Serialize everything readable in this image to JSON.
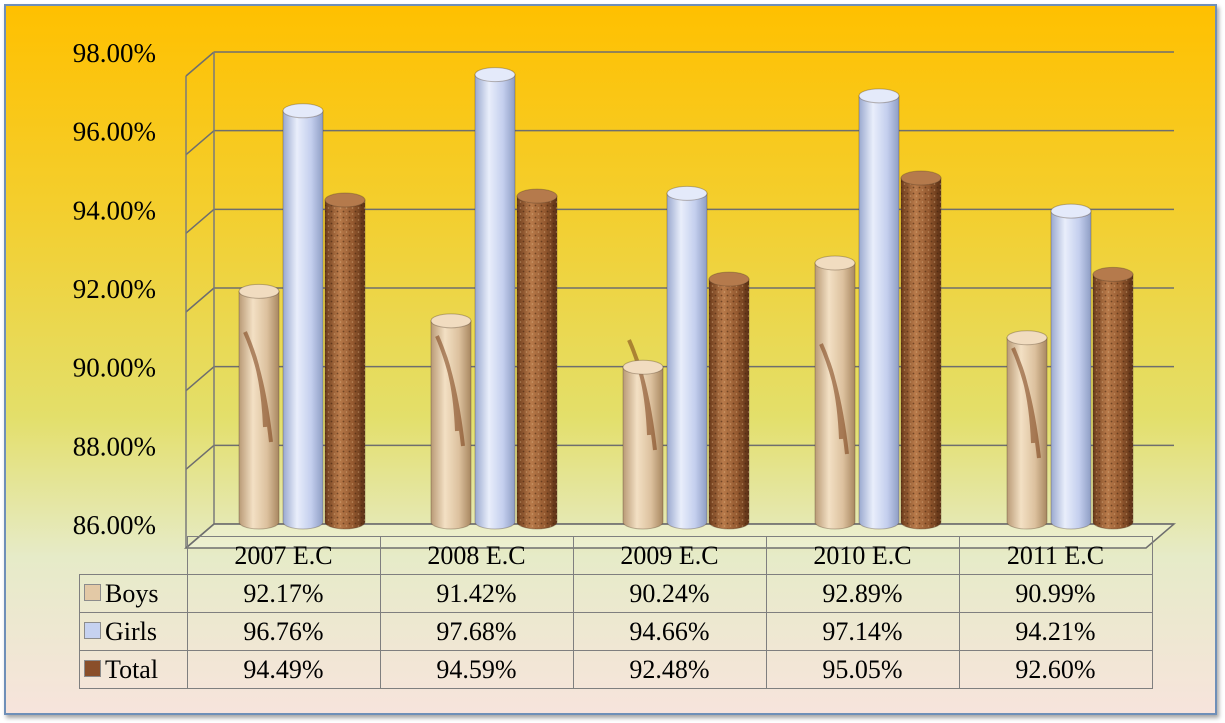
{
  "chart_data": {
    "type": "bar",
    "style": "3d-cylinder",
    "categories": [
      "2007 E.C",
      "2008 E.C",
      "2009 E.C",
      "2010 E.C",
      "2011 E.C"
    ],
    "series": [
      {
        "name": "Boys",
        "color": "#d9b890",
        "values": [
          92.17,
          91.42,
          90.24,
          92.89,
          90.99
        ],
        "labels": [
          "92.17%",
          "91.42%",
          "90.24%",
          "92.89%",
          "90.99%"
        ]
      },
      {
        "name": "Girls",
        "color": "#b9c6ea",
        "values": [
          96.76,
          97.68,
          94.66,
          97.14,
          94.21
        ],
        "labels": [
          "96.76%",
          "97.68%",
          "94.66%",
          "97.14%",
          "94.21%"
        ]
      },
      {
        "name": "Total",
        "color": "#8a4f2a",
        "values": [
          94.49,
          94.59,
          92.48,
          95.05,
          92.6
        ],
        "labels": [
          "94.49%",
          "94.59%",
          "92.48%",
          "95.05%",
          "92.60%"
        ]
      }
    ],
    "ylim": [
      86,
      98
    ],
    "yticks": [
      86,
      88,
      90,
      92,
      94,
      96,
      98
    ],
    "ytick_labels": [
      "86.00%",
      "88.00%",
      "90.00%",
      "92.00%",
      "94.00%",
      "96.00%",
      "98.00%"
    ],
    "grid": true,
    "legend": "data-table"
  }
}
